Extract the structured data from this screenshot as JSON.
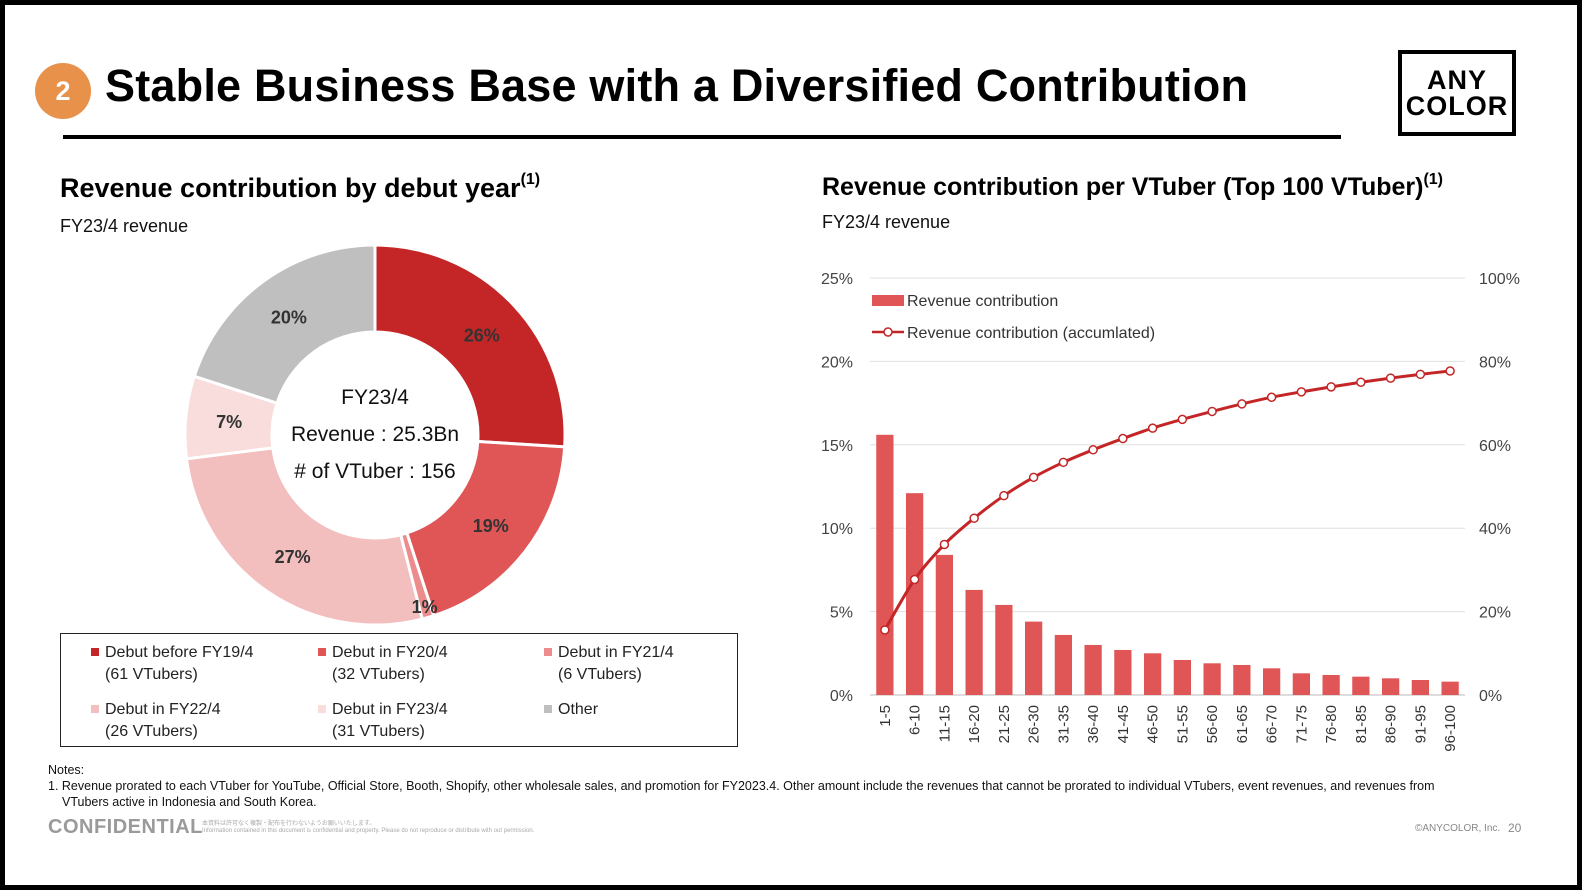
{
  "header": {
    "badge": "2",
    "title": "Stable Business Base with a Diversified Contribution",
    "logo_line1": "ANY",
    "logo_line2": "COLOR"
  },
  "left_section": {
    "title": "Revenue contribution by debut year",
    "title_note": "(1)",
    "subtitle": "FY23/4 revenue",
    "center_line1": "FY23/4",
    "center_line2": "Revenue : 25.3Bn",
    "center_line3": "# of VTuber : 156"
  },
  "right_section": {
    "title": "Revenue contribution per VTuber (Top 100 VTuber)",
    "title_note": "(1)",
    "subtitle": "FY23/4 revenue"
  },
  "legend": [
    {
      "line1": "Debut  before FY19/4",
      "line2": "(61 VTubers)",
      "color": "#C42627"
    },
    {
      "line1": "Debut in FY20/4",
      "line2": "(32 VTubers)",
      "color": "#E05556"
    },
    {
      "line1": "Debut in FY21/4",
      "line2": "(6 VTubers)",
      "color": "#EC8C8C"
    },
    {
      "line1": "Debut in FY22/4",
      "line2": "(26 VTubers)",
      "color": "#F3BEBE"
    },
    {
      "line1": "Debut in FY23/4",
      "line2": "(31 VTubers)",
      "color": "#F9DCDC"
    },
    {
      "line1": "Other",
      "line2": "",
      "color": "#BFBFBF"
    }
  ],
  "chart_data": [
    {
      "type": "pie",
      "title": "Revenue contribution by debut year",
      "categories": [
        "Debut  before FY19/4",
        "Debut in FY20/4",
        "Debut in FY21/4",
        "Debut in FY22/4",
        "Debut in FY23/4",
        "Other"
      ],
      "values": [
        26,
        19,
        1,
        27,
        7,
        20
      ],
      "labels": [
        "26%",
        "19%",
        "1%",
        "27%",
        "7%",
        "20%"
      ],
      "colors": [
        "#C42627",
        "#E05556",
        "#EC8C8C",
        "#F3BEBE",
        "#F9DCDC",
        "#BFBFBF"
      ],
      "donut": true
    },
    {
      "type": "bar",
      "title": "Revenue contribution per VTuber (Top 100 VTuber)",
      "categories": [
        "1-5",
        "6-10",
        "11-15",
        "16-20",
        "21-25",
        "26-30",
        "31-35",
        "36-40",
        "41-45",
        "46-50",
        "51-55",
        "56-60",
        "61-65",
        "66-70",
        "71-75",
        "76-80",
        "81-85",
        "86-90",
        "91-95",
        "96-100"
      ],
      "series": [
        {
          "name": "Revenue contribution",
          "type": "bar",
          "axis": "left",
          "color": "#E05556",
          "values": [
            15.6,
            12.1,
            8.4,
            6.3,
            5.4,
            4.4,
            3.6,
            3.0,
            2.7,
            2.5,
            2.1,
            1.9,
            1.8,
            1.6,
            1.3,
            1.2,
            1.1,
            1.0,
            0.9,
            0.8
          ]
        },
        {
          "name": "Revenue contribution (accumlated)",
          "type": "line",
          "axis": "right",
          "color": "#C42627",
          "values": [
            15.6,
            27.7,
            36.1,
            42.4,
            47.8,
            52.2,
            55.8,
            58.8,
            61.5,
            64.0,
            66.1,
            68.0,
            69.8,
            71.4,
            72.7,
            73.9,
            75.0,
            76.0,
            76.9,
            77.7
          ]
        }
      ],
      "ylim": [
        0,
        25
      ],
      "y2lim": [
        0,
        100
      ],
      "yticks": [
        "0%",
        "5%",
        "10%",
        "15%",
        "20%",
        "25%"
      ],
      "y2ticks": [
        "0%",
        "20%",
        "40%",
        "60%",
        "80%",
        "100%"
      ],
      "grid": true,
      "legend": "top-left"
    }
  ],
  "notes": {
    "heading": "Notes:",
    "line1": "1.  Revenue prorated to each VTuber for YouTube, Official Store, Booth, Shopify, other wholesale sales, and promotion for FY2023.4. Other amount include the revenues that cannot be prorated to individual VTubers, event revenues, and revenues from",
    "line2": "VTubers active in Indonesia and South Korea."
  },
  "footer": {
    "confidential": "CONFIDENTIAL",
    "disclaimer_jp": "本資料は許可なく複製・配布を行わないようお願いいたします。",
    "disclaimer_en": "Information contained in this document is confidential and property. Please do not reproduce or distribute with out permission.",
    "copyright": "©ANYCOLOR, Inc.",
    "page": "20"
  }
}
